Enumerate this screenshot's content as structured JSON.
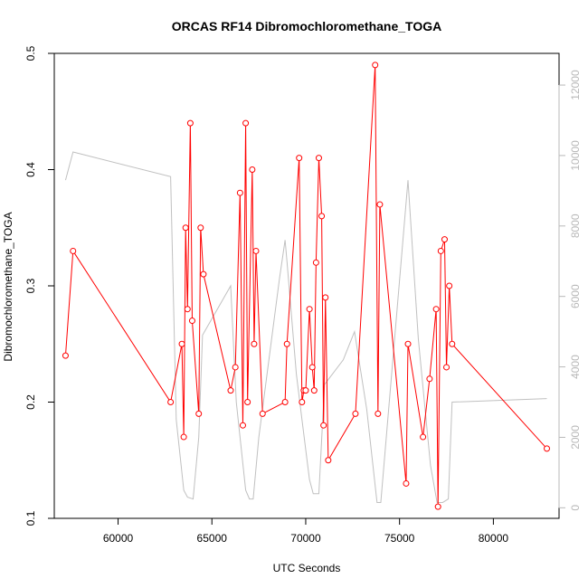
{
  "chart_data": {
    "type": "line",
    "title": "ORCAS RF14 Dibromochloromethane_TOGA",
    "xlabel": "UTC Seconds",
    "ylabel": "Dibromochloromethane_TOGA",
    "xlim": [
      56600,
      83500
    ],
    "ylim": [
      0.1,
      0.5
    ],
    "y2lim": [
      -300,
      12900
    ],
    "x_ticks": [
      60000,
      65000,
      70000,
      75000,
      80000
    ],
    "y_ticks": [
      0.1,
      0.2,
      0.3,
      0.4,
      0.5
    ],
    "y2_ticks": [
      0,
      2000,
      4000,
      6000,
      8000,
      10000,
      12000
    ],
    "grid": false,
    "legend": "none",
    "series": [
      {
        "axis": "left",
        "color": "#ff0000",
        "marker": "open-circle",
        "style": "line-with-points",
        "points": [
          [
            57200,
            0.24
          ],
          [
            57600,
            0.33
          ],
          [
            62800,
            0.2
          ],
          [
            63400,
            0.25
          ],
          [
            63500,
            0.17
          ],
          [
            63600,
            0.35
          ],
          [
            63700,
            0.28
          ],
          [
            63850,
            0.44
          ],
          [
            63950,
            0.27
          ],
          [
            64300,
            0.19
          ],
          [
            64400,
            0.35
          ],
          [
            64550,
            0.31
          ],
          [
            66000,
            0.21
          ],
          [
            66250,
            0.23
          ],
          [
            66500,
            0.38
          ],
          [
            66650,
            0.18
          ],
          [
            66800,
            0.44
          ],
          [
            66900,
            0.2
          ],
          [
            67150,
            0.4
          ],
          [
            67250,
            0.25
          ],
          [
            67350,
            0.33
          ],
          [
            67700,
            0.19
          ],
          [
            68900,
            0.2
          ],
          [
            69000,
            0.25
          ],
          [
            69650,
            0.41
          ],
          [
            69800,
            0.2
          ],
          [
            69900,
            0.21
          ],
          [
            70000,
            0.21
          ],
          [
            70200,
            0.28
          ],
          [
            70350,
            0.23
          ],
          [
            70450,
            0.21
          ],
          [
            70550,
            0.32
          ],
          [
            70700,
            0.41
          ],
          [
            70850,
            0.36
          ],
          [
            70950,
            0.18
          ],
          [
            71050,
            0.29
          ],
          [
            71200,
            0.15
          ],
          [
            72650,
            0.19
          ],
          [
            73700,
            0.49
          ],
          [
            73850,
            0.19
          ],
          [
            73950,
            0.37
          ],
          [
            75350,
            0.13
          ],
          [
            75450,
            0.25
          ],
          [
            76250,
            0.17
          ],
          [
            76600,
            0.22
          ],
          [
            76950,
            0.28
          ],
          [
            77050,
            0.11
          ],
          [
            77200,
            0.33
          ],
          [
            77400,
            0.34
          ],
          [
            77500,
            0.23
          ],
          [
            77650,
            0.3
          ],
          [
            77800,
            0.25
          ],
          [
            82850,
            0.16
          ]
        ]
      },
      {
        "axis": "right",
        "color": "#c0c0c0",
        "style": "line",
        "points": [
          [
            57200,
            9300
          ],
          [
            57600,
            10100
          ],
          [
            62800,
            9400
          ],
          [
            63100,
            2500
          ],
          [
            63400,
            1000
          ],
          [
            63500,
            500
          ],
          [
            63700,
            300
          ],
          [
            64000,
            250
          ],
          [
            64300,
            2000
          ],
          [
            64500,
            4900
          ],
          [
            66000,
            6300
          ],
          [
            66300,
            3000
          ],
          [
            66600,
            1500
          ],
          [
            66800,
            500
          ],
          [
            67000,
            250
          ],
          [
            67200,
            250
          ],
          [
            67500,
            2000
          ],
          [
            68600,
            6500
          ],
          [
            68900,
            7600
          ],
          [
            69000,
            7000
          ],
          [
            69500,
            3800
          ],
          [
            69800,
            2500
          ],
          [
            70200,
            800
          ],
          [
            70400,
            400
          ],
          [
            70700,
            400
          ],
          [
            71000,
            3500
          ],
          [
            72000,
            4200
          ],
          [
            72600,
            5000
          ],
          [
            73250,
            2800
          ],
          [
            73800,
            150
          ],
          [
            74000,
            150
          ],
          [
            75450,
            9300
          ],
          [
            76000,
            4800
          ],
          [
            76650,
            1200
          ],
          [
            77000,
            150
          ],
          [
            77300,
            150
          ],
          [
            77600,
            250
          ],
          [
            77800,
            3000
          ],
          [
            82850,
            3100
          ]
        ]
      }
    ]
  }
}
